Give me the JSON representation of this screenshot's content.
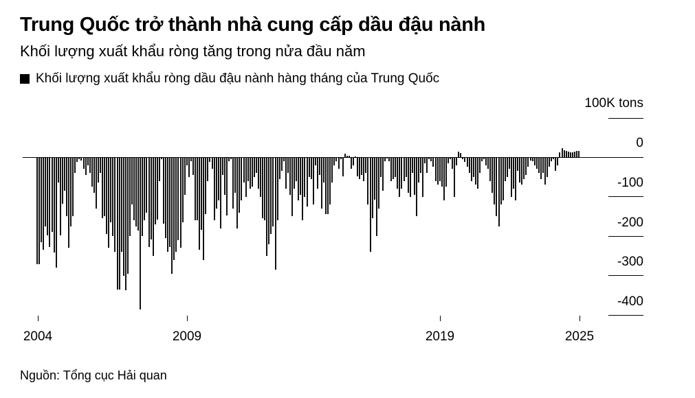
{
  "header": {
    "title": "Trung Quốc trở thành nhà cung cấp dầu đậu nành",
    "subtitle": "Khối lượng xuất khẩu ròng tăng trong nửa đầu năm",
    "legend_label": "Khối lượng xuất khẩu ròng dầu đậu nành hàng tháng của Trung Quốc",
    "legend_color": "#000000"
  },
  "axis": {
    "unit": "100K tons",
    "y_ticks": [
      "0",
      "-100",
      "-200",
      "-300",
      "-400"
    ],
    "x_ticks": [
      "2004",
      "2009",
      "2019",
      "2025"
    ]
  },
  "footer": {
    "source": "Nguồn: Tổng cục Hải quan"
  },
  "chart_data": {
    "type": "bar",
    "title": "Trung Quốc trở thành nhà cung cấp dầu đậu nành",
    "subtitle": "Khối lượng xuất khẩu ròng tăng trong nửa đầu năm",
    "xlabel": "",
    "ylabel": "100K tons",
    "ylim": [
      -420,
      100
    ],
    "y_ticks": [
      100,
      0,
      -100,
      -200,
      -300,
      -400
    ],
    "x_tick_labels": [
      "2004",
      "2009",
      "2019",
      "2025"
    ],
    "legend": [
      "Khối lượng xuất khẩu ròng dầu đậu nành hàng tháng của Trung Quốc"
    ],
    "grid": false,
    "legend_position": "top-left",
    "series": [
      {
        "name": "Khối lượng xuất khẩu ròng dầu đậu nành hàng tháng của Trung Quốc",
        "color": "#111111",
        "values": [
          -272,
          -272,
          -215,
          -235,
          -175,
          -198,
          -228,
          -190,
          -242,
          -280,
          -65,
          -198,
          -118,
          -85,
          -150,
          -230,
          -175,
          -150,
          -40,
          -12,
          -5,
          -8,
          -30,
          -45,
          -20,
          -40,
          -75,
          -90,
          -130,
          -65,
          -40,
          -155,
          -150,
          -195,
          -230,
          -165,
          -200,
          -240,
          -335,
          -335,
          -240,
          -300,
          -338,
          -295,
          -200,
          -120,
          -160,
          -175,
          -186,
          -386,
          -200,
          -160,
          -140,
          -228,
          -208,
          -250,
          -170,
          -158,
          -60,
          -5,
          -168,
          -205,
          -240,
          -228,
          -295,
          -260,
          -240,
          -210,
          -230,
          -165,
          -95,
          -20,
          -50,
          -10,
          -45,
          -160,
          -160,
          -235,
          -185,
          -260,
          -145,
          -60,
          -12,
          -30,
          -160,
          -130,
          -110,
          -180,
          -45,
          -95,
          -148,
          -10,
          -5,
          -130,
          -90,
          -180,
          -140,
          -110,
          -65,
          -100,
          -60,
          -80,
          -75,
          -50,
          -40,
          -80,
          -100,
          -155,
          -160,
          -250,
          -220,
          -195,
          -175,
          -285,
          -160,
          -55,
          -35,
          -10,
          -80,
          -40,
          -95,
          -150,
          -80,
          -60,
          -110,
          -95,
          -160,
          -100,
          -125,
          -50,
          -55,
          -120,
          -20,
          -80,
          -45,
          -130,
          -65,
          -145,
          -145,
          -120,
          -65,
          -20,
          -10,
          -30,
          -5,
          -48,
          8,
          4,
          3,
          -30,
          -20,
          2,
          -48,
          -55,
          -45,
          -60,
          -40,
          -120,
          -240,
          -155,
          -108,
          -200,
          -130,
          -50,
          -85,
          -10,
          -3,
          -10,
          -60,
          -55,
          -50,
          -80,
          -100,
          -80,
          -60,
          -50,
          -90,
          -100,
          -40,
          -95,
          -150,
          -65,
          -40,
          -100,
          -15,
          -40,
          -5,
          -10,
          -25,
          -60,
          -70,
          -60,
          -75,
          -110,
          -75,
          -15,
          -5,
          -30,
          -100,
          -20,
          14,
          10,
          -6,
          -12,
          -25,
          -40,
          -60,
          -50,
          -70,
          -80,
          -40,
          -10,
          -5,
          -20,
          -30,
          -60,
          -90,
          -120,
          -150,
          -175,
          -120,
          -110,
          -60,
          -50,
          -30,
          -100,
          -80,
          -110,
          -35,
          -65,
          -70,
          -55,
          -45,
          -25,
          -8,
          -10,
          -20,
          -30,
          -40,
          -55,
          -40,
          -70,
          -50,
          -25,
          -10,
          -5,
          -35,
          -20,
          12,
          22,
          18,
          16,
          14,
          12,
          12,
          14,
          16,
          16
        ]
      }
    ]
  }
}
